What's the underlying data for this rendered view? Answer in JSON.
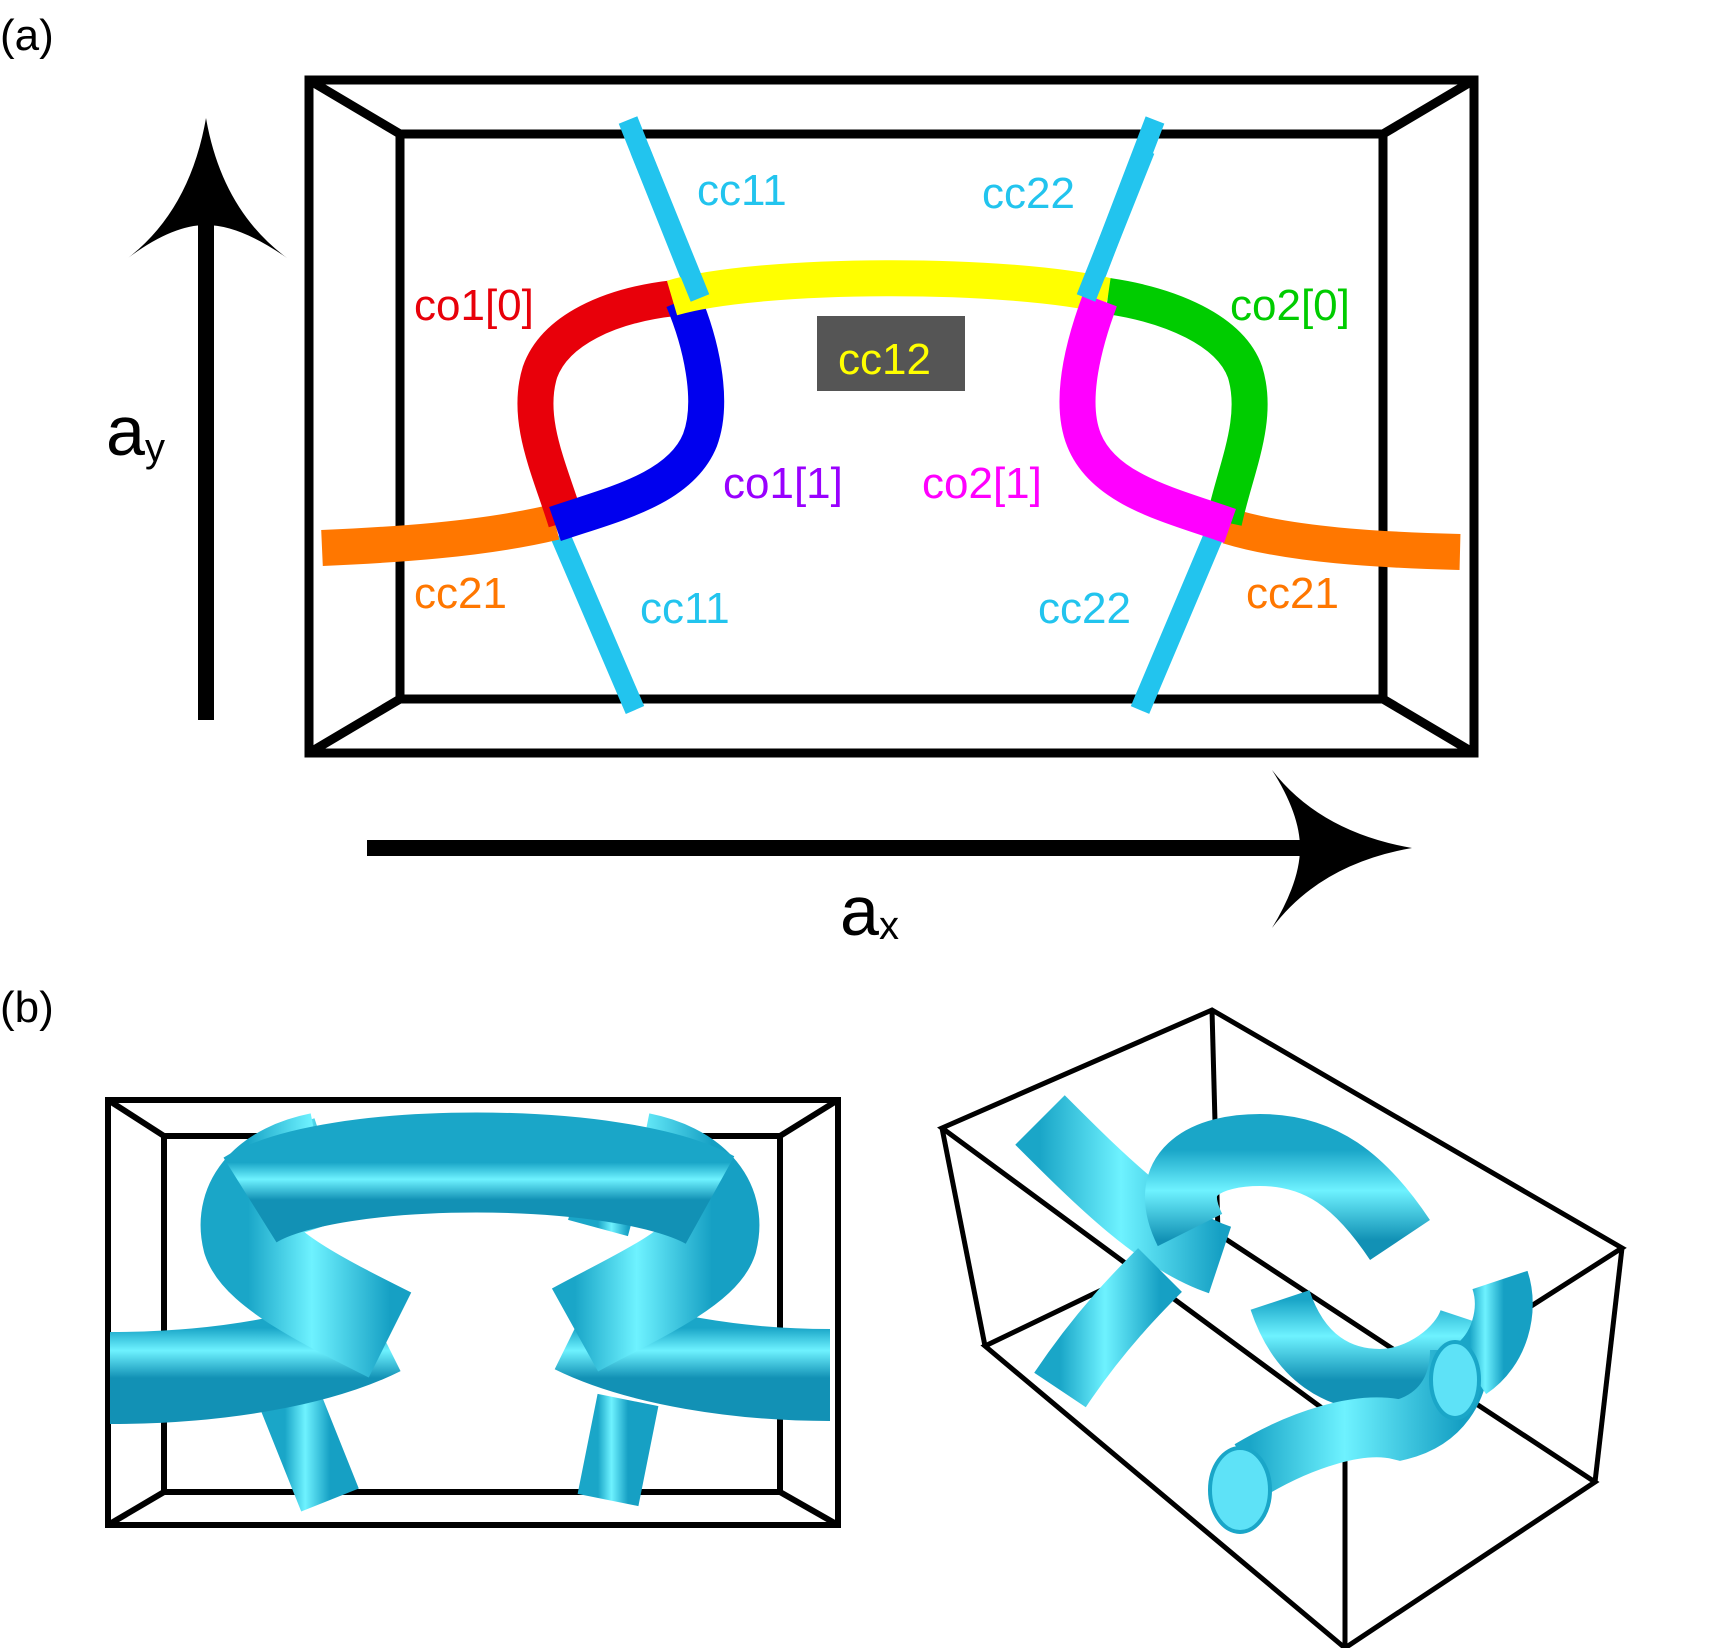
{
  "panel_a": {
    "label": "(a)",
    "axis_x": {
      "base": "a",
      "sub": "x"
    },
    "axis_y": {
      "base": "a",
      "sub": "y"
    },
    "segment_labels": {
      "cc11_top": "cc11",
      "cc22_top": "cc22",
      "co1_0": "co1[0]",
      "co2_0": "co2[0]",
      "cc12": "cc12",
      "co1_1": "co1[1]",
      "co2_1": "co2[1]",
      "cc21_left": "cc21",
      "cc11_bottom": "cc11",
      "cc22_bottom": "cc22",
      "cc21_right": "cc21"
    },
    "colors": {
      "cc11": "#22c4ee",
      "cc22": "#22c4ee",
      "cc12": "#ffff00",
      "co1_0": "#e8000a",
      "co1_1": "#0000ee",
      "co2_0": "#00cc00",
      "co2_1": "#ff00ff",
      "cc21": "#ff7700",
      "co1_1_label": "#9900ff",
      "cc12_label_bg": "#555555"
    }
  },
  "panel_b": {
    "label": "(b)",
    "tube_color": "#33ddf5"
  }
}
